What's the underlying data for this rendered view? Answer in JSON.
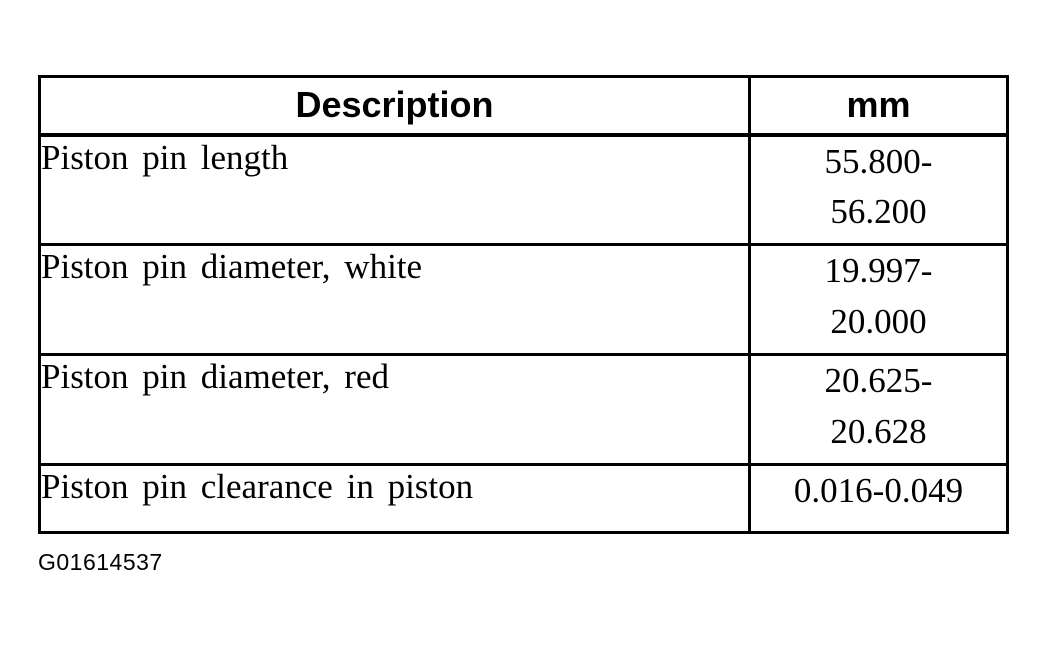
{
  "table": {
    "headers": [
      {
        "label": "Description"
      },
      {
        "label": "mm"
      }
    ],
    "rows": [
      {
        "description": "Piston pin length",
        "mm": "55.800-\n56.200"
      },
      {
        "description": "Piston pin diameter, white",
        "mm": "19.997-\n20.000"
      },
      {
        "description": "Piston pin diameter, red",
        "mm": "20.625-\n20.628"
      },
      {
        "description": "Piston pin clearance in piston",
        "mm": "0.016-0.049"
      }
    ]
  },
  "figure_id": "G01614537",
  "colors": {
    "ink": "#000000",
    "paper": "#ffffff"
  }
}
